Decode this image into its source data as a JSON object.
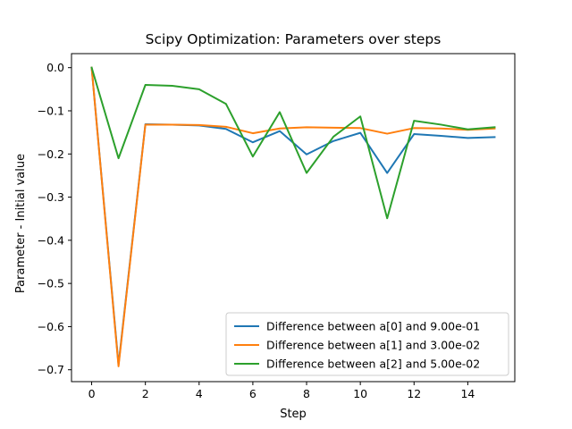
{
  "chart_data": {
    "type": "line",
    "title": "Scipy Optimization: Parameters over steps",
    "xlabel": "Step",
    "ylabel": "Parameter - Initial value",
    "xlim": [
      -0.75,
      15.75
    ],
    "ylim": [
      -0.7275,
      0.0325
    ],
    "x_ticks": [
      0,
      2,
      4,
      6,
      8,
      10,
      12,
      14
    ],
    "x_tick_labels": [
      "0",
      "2",
      "4",
      "6",
      "8",
      "10",
      "12",
      "14"
    ],
    "y_ticks": [
      0.0,
      -0.1,
      -0.2,
      -0.3,
      -0.4,
      -0.5,
      -0.6,
      -0.7
    ],
    "y_tick_labels": [
      "0.0",
      "−0.1",
      "−0.2",
      "−0.3",
      "−0.4",
      "−0.5",
      "−0.6",
      "−0.7"
    ],
    "grid": false,
    "legend_position": "lower-right",
    "x": [
      0,
      1,
      2,
      3,
      4,
      5,
      6,
      7,
      8,
      9,
      10,
      11,
      12,
      13,
      14,
      15
    ],
    "series": [
      {
        "name": "Difference between a[0] and 9.00e-01",
        "color": "#1f77b4",
        "values": [
          0.0,
          -0.688,
          -0.131,
          -0.132,
          -0.134,
          -0.142,
          -0.173,
          -0.147,
          -0.201,
          -0.17,
          -0.151,
          -0.244,
          -0.154,
          -0.158,
          -0.163,
          -0.161
        ]
      },
      {
        "name": "Difference between a[1] and 3.00e-02",
        "color": "#ff7f0e",
        "values": [
          0.0,
          -0.692,
          -0.132,
          -0.132,
          -0.133,
          -0.137,
          -0.152,
          -0.141,
          -0.138,
          -0.139,
          -0.14,
          -0.153,
          -0.14,
          -0.141,
          -0.144,
          -0.141
        ]
      },
      {
        "name": "Difference between a[2] and 5.00e-02",
        "color": "#2ca02c",
        "values": [
          0.0,
          -0.21,
          -0.04,
          -0.042,
          -0.05,
          -0.084,
          -0.206,
          -0.103,
          -0.244,
          -0.16,
          -0.113,
          -0.349,
          -0.123,
          -0.132,
          -0.143,
          -0.138
        ]
      }
    ]
  }
}
